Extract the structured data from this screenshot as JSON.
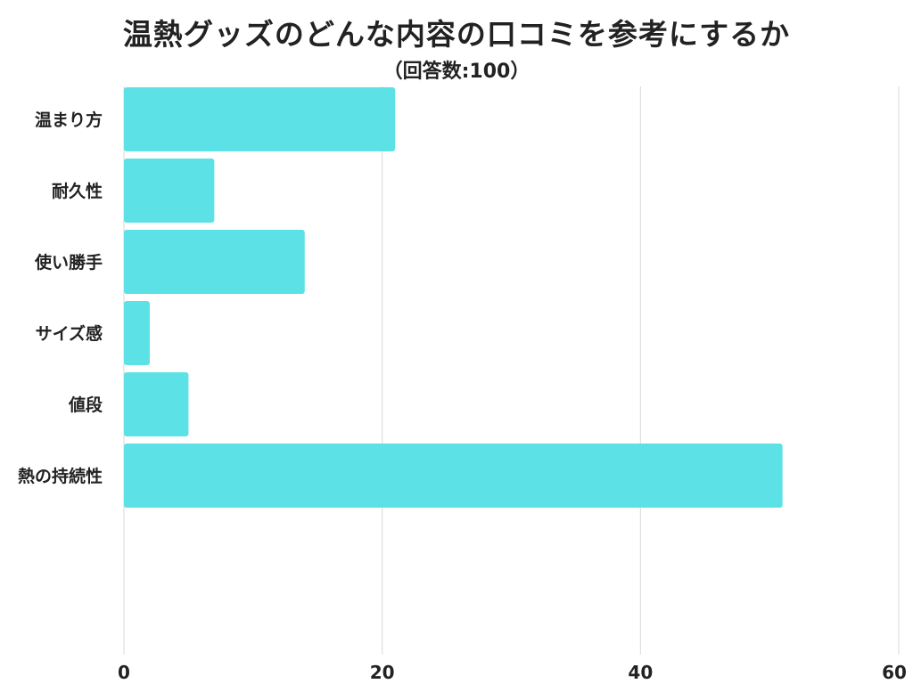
{
  "chart_data": {
    "type": "bar",
    "orientation": "horizontal",
    "title": "温熱グッズのどんな内容の口コミを参考にするか",
    "subtitle": "（回答数:100）",
    "categories": [
      "温まり方",
      "耐久性",
      "使い勝手",
      "サイズ感",
      "値段",
      "熱の持続性"
    ],
    "values": [
      21,
      7,
      14,
      2,
      5,
      51
    ],
    "xlim": [
      0,
      60
    ],
    "xticks": [
      0,
      20,
      40,
      60
    ],
    "xlabel": "",
    "ylabel": "",
    "grid": "vertical",
    "bar_color": "#5ce1e6"
  }
}
